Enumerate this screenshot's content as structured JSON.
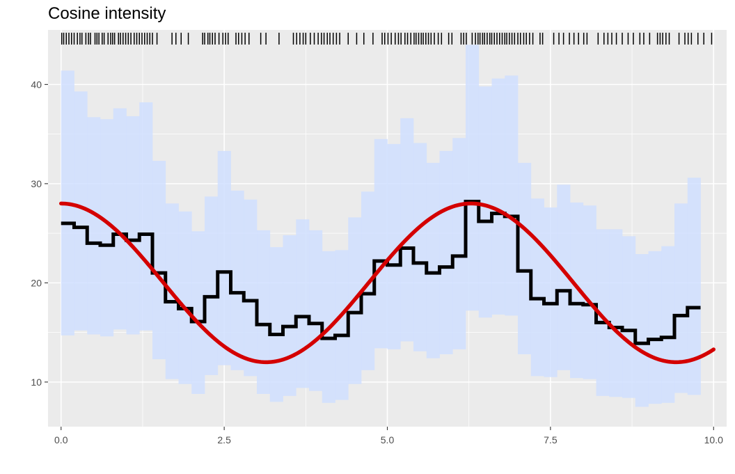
{
  "chart_data": {
    "type": "line",
    "title": "Cosine intensity",
    "xlabel": "",
    "ylabel": "",
    "xlim": [
      -0.2,
      10.2
    ],
    "ylim": [
      5.5,
      45.5
    ],
    "x_ticks": [
      0.0,
      2.5,
      5.0,
      7.5,
      10.0
    ],
    "x_tick_labels": [
      "0.0",
      "2.5",
      "5.0",
      "7.5",
      "10.0"
    ],
    "y_ticks": [
      10,
      20,
      30,
      40
    ],
    "y_tick_labels": [
      "10",
      "20",
      "30",
      "40"
    ],
    "grid": true,
    "bin_width": 0.2,
    "band_color": "#d0dfff",
    "step_color": "#000000",
    "curve_color": "#d40000",
    "band_lower": [
      14.7,
      15.2,
      14.8,
      14.6,
      15.3,
      14.8,
      15.2,
      12.3,
      10.3,
      9.8,
      8.8,
      10.7,
      11.7,
      11.2,
      10.6,
      8.8,
      8.0,
      8.6,
      9.4,
      9.1,
      7.9,
      8.2,
      9.8,
      11.2,
      13.4,
      13.3,
      14.1,
      13.1,
      12.4,
      12.8,
      13.3,
      17.2,
      16.5,
      16.8,
      16.7,
      12.8,
      10.6,
      10.5,
      11.2,
      10.4,
      10.3,
      8.6,
      8.5,
      8.4,
      7.5,
      7.8,
      7.9,
      8.9,
      8.7
    ],
    "band_upper": [
      41.4,
      39.3,
      36.7,
      36.5,
      37.6,
      36.8,
      38.2,
      32.3,
      28.0,
      27.2,
      25.2,
      28.7,
      33.3,
      29.3,
      28.4,
      25.3,
      23.6,
      24.8,
      26.4,
      25.3,
      23.2,
      23.3,
      26.6,
      29.2,
      34.5,
      34.0,
      36.6,
      34.1,
      32.1,
      33.3,
      34.6,
      44.0,
      39.8,
      40.6,
      40.9,
      32.1,
      28.5,
      27.6,
      29.9,
      28.1,
      27.8,
      25.4,
      25.4,
      24.7,
      22.9,
      23.2,
      23.7,
      28.0,
      30.6
    ],
    "step_values": [
      26.0,
      25.6,
      24.0,
      23.8,
      24.9,
      24.3,
      24.9,
      21.0,
      18.1,
      17.4,
      16.1,
      18.6,
      21.1,
      19.0,
      18.2,
      15.8,
      14.8,
      15.6,
      16.6,
      15.9,
      14.4,
      14.7,
      17.0,
      18.9,
      22.2,
      21.8,
      23.5,
      22.0,
      21.0,
      21.6,
      22.7,
      28.2,
      26.2,
      27.0,
      26.7,
      21.2,
      18.4,
      17.9,
      19.2,
      17.9,
      17.8,
      16.0,
      15.5,
      15.2,
      13.9,
      14.3,
      14.5,
      16.7,
      17.5
    ],
    "curve": {
      "expression": "20 + 8*cos(x)",
      "x_range": [
        0,
        10
      ]
    },
    "rug_x": [
      0.01,
      0.04,
      0.08,
      0.12,
      0.16,
      0.2,
      0.25,
      0.29,
      0.32,
      0.38,
      0.42,
      0.45,
      0.52,
      0.55,
      0.58,
      0.63,
      0.66,
      0.72,
      0.76,
      0.79,
      0.82,
      0.88,
      0.91,
      0.95,
      0.99,
      1.03,
      1.07,
      1.12,
      1.16,
      1.2,
      1.24,
      1.28,
      1.32,
      1.36,
      1.4,
      1.47,
      1.7,
      1.76,
      1.84,
      1.95,
      2.17,
      2.2,
      2.25,
      2.28,
      2.32,
      2.36,
      2.42,
      2.48,
      2.52,
      2.56,
      2.68,
      2.72,
      2.77,
      2.82,
      2.88,
      3.06,
      3.14,
      3.34,
      3.56,
      3.61,
      3.66,
      3.71,
      3.75,
      3.82,
      3.88,
      3.94,
      3.99,
      4.03,
      4.08,
      4.12,
      4.17,
      4.22,
      4.27,
      4.4,
      4.53,
      4.64,
      4.78,
      4.92,
      4.96,
      5.01,
      5.06,
      5.12,
      5.17,
      5.21,
      5.27,
      5.31,
      5.36,
      5.41,
      5.44,
      5.48,
      5.52,
      5.55,
      5.59,
      5.63,
      5.67,
      5.72,
      5.78,
      5.83,
      5.94,
      5.99,
      6.13,
      6.17,
      6.21,
      6.3,
      6.35,
      6.39,
      6.42,
      6.46,
      6.49,
      6.53,
      6.57,
      6.6,
      6.64,
      6.68,
      6.72,
      6.76,
      6.8,
      6.83,
      6.87,
      6.91,
      6.95,
      7.0,
      7.04,
      7.09,
      7.13,
      7.18,
      7.23,
      7.34,
      7.38,
      7.55,
      7.63,
      7.7,
      7.79,
      7.86,
      7.93,
      8.01,
      8.06,
      8.23,
      8.32,
      8.38,
      8.44,
      8.51,
      8.6,
      8.69,
      8.77,
      8.87,
      8.93,
      9.02,
      9.14,
      9.18,
      9.22,
      9.27,
      9.32,
      9.47,
      9.56,
      9.61,
      9.66,
      9.76,
      9.85,
      9.97
    ]
  }
}
